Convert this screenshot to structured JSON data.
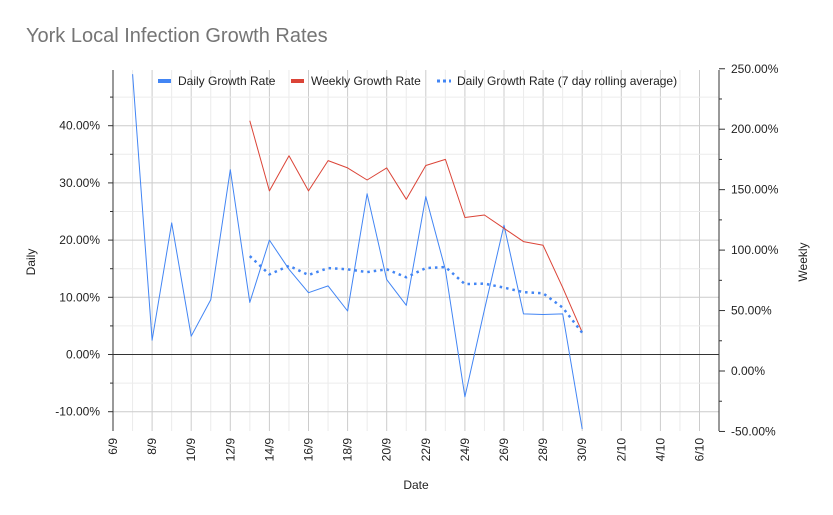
{
  "chart_data": {
    "type": "line",
    "title": "York Local Infection Growth Rates",
    "xlabel": "Date",
    "ylabel_left": "Daily",
    "ylabel_right": "Weekly",
    "x_tick_labels": [
      "6/9",
      "8/9",
      "10/9",
      "12/9",
      "14/9",
      "16/9",
      "18/9",
      "20/9",
      "22/9",
      "24/9",
      "26/9",
      "28/9",
      "30/9",
      "2/10",
      "4/10",
      "6/10"
    ],
    "x_start_day_label": "6/9",
    "x_range_days": [
      0,
      30
    ],
    "y_left": {
      "range": [
        -13,
        50
      ],
      "ticks": [
        -10,
        0,
        10,
        20,
        30,
        40
      ],
      "tick_labels": [
        "-10.00%",
        "0.00%",
        "10.00%",
        "20.00%",
        "30.00%",
        "40.00%"
      ]
    },
    "y_right": {
      "range": [
        -50,
        250
      ],
      "ticks": [
        -50,
        0,
        50,
        100,
        150,
        200,
        250
      ],
      "tick_labels": [
        "-50.00%",
        "0.00%",
        "50.00%",
        "100.00%",
        "150.00%",
        "200.00%",
        "250.00%"
      ]
    },
    "grid": true,
    "legend_position": "top",
    "series": [
      {
        "name": "Daily Growth Rate",
        "axis": "left",
        "color": "#4285f4",
        "style": "solid",
        "x": [
          "7/9",
          "8/9",
          "9/9",
          "10/9",
          "11/9",
          "12/9",
          "13/9",
          "14/9",
          "15/9",
          "16/9",
          "17/9",
          "18/9",
          "19/9",
          "20/9",
          "21/9",
          "22/9",
          "23/9",
          "24/9",
          "25/9",
          "26/9",
          "27/9",
          "28/9",
          "29/9",
          "30/9"
        ],
        "values": [
          49,
          2.5,
          23,
          3.2,
          9.6,
          32.3,
          9.1,
          20,
          14.9,
          10.8,
          12,
          7.6,
          28.1,
          13.1,
          8.6,
          27.6,
          14.8,
          -7.4,
          7.8,
          22.6,
          7.1,
          7.0,
          7.1,
          -13
        ]
      },
      {
        "name": "Weekly Growth Rate",
        "axis": "right",
        "color": "#db4437",
        "style": "solid",
        "x": [
          "13/9",
          "14/9",
          "15/9",
          "16/9",
          "17/9",
          "18/9",
          "19/9",
          "20/9",
          "21/9",
          "22/9",
          "23/9",
          "24/9",
          "25/9",
          "26/9",
          "27/9",
          "28/9",
          "29/9",
          "30/9"
        ],
        "values": [
          207,
          149,
          178,
          149,
          174,
          168,
          158,
          168,
          142,
          170,
          175,
          127,
          129,
          118,
          107,
          104,
          69,
          32
        ]
      },
      {
        "name": "Daily Growth Rate (7 day rolling average)",
        "axis": "left",
        "color": "#4285f4",
        "style": "dotted",
        "x": [
          "13/9",
          "14/9",
          "15/9",
          "16/9",
          "17/9",
          "18/9",
          "19/9",
          "20/9",
          "21/9",
          "22/9",
          "23/9",
          "24/9",
          "25/9",
          "26/9",
          "27/9",
          "28/9",
          "29/9",
          "30/9"
        ],
        "values": [
          17.2,
          14,
          15.5,
          13.9,
          15.1,
          14.9,
          14.4,
          14.9,
          13.5,
          15.1,
          15.3,
          12.3,
          12.4,
          11.7,
          10.9,
          10.7,
          8.2,
          3.8
        ]
      }
    ]
  }
}
